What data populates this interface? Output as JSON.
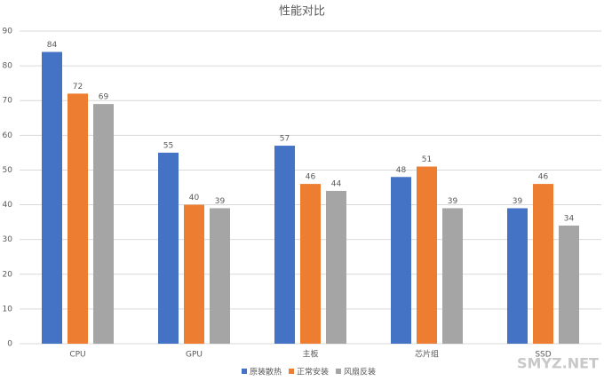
{
  "chart_data": {
    "type": "bar",
    "title": "性能对比",
    "categories": [
      "CPU",
      "GPU",
      "主板",
      "芯片组",
      "SSD"
    ],
    "series": [
      {
        "name": "原装散热",
        "color": "#4472c4",
        "values": [
          84,
          55,
          57,
          48,
          39
        ]
      },
      {
        "name": "正常安装",
        "color": "#ed7d31",
        "values": [
          72,
          40,
          46,
          51,
          46
        ]
      },
      {
        "name": "风扇反装",
        "color": "#a5a5a5",
        "values": [
          69,
          39,
          44,
          39,
          34
        ]
      }
    ],
    "ylim": [
      0,
      90
    ],
    "yticks": [
      0,
      10,
      20,
      30,
      40,
      50,
      60,
      70,
      80,
      90
    ],
    "grid": true,
    "legend": "bottom",
    "watermark": "SMYZ.NET"
  }
}
